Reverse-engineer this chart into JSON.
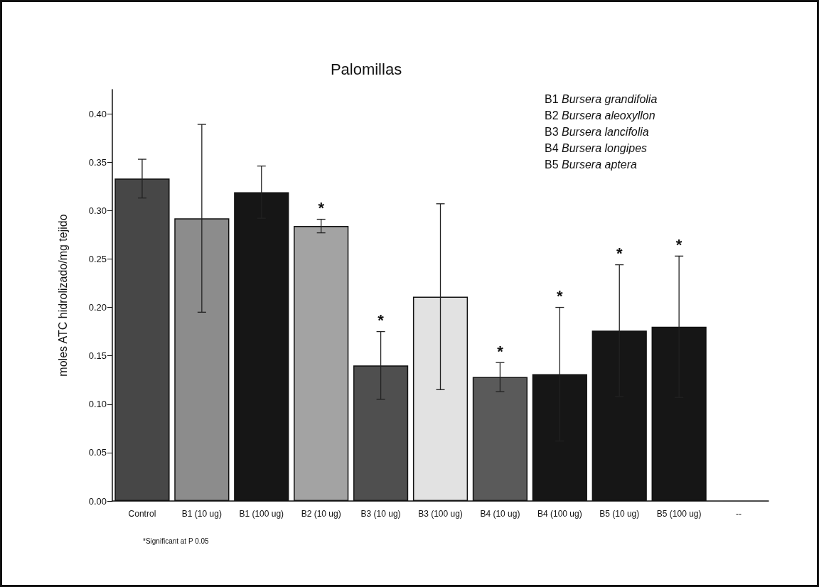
{
  "chart_data": {
    "type": "bar",
    "title": "Palomillas",
    "ylabel": "moles ATC hidrolizado/mg tejido",
    "categories": [
      "Control",
      "B1 (10 ug)",
      "B1 (100 ug)",
      "B2 (10 ug)",
      "B3 (10 ug)",
      "B3 (100 ug)",
      "B4 (10 ug)",
      "B4 (100 ug)",
      "B5 (10 ug)",
      "B5 (100 ug)",
      "--"
    ],
    "values": [
      0.333,
      0.292,
      0.319,
      0.284,
      0.14,
      0.211,
      0.128,
      0.131,
      0.176,
      0.18,
      null
    ],
    "errors": [
      0.02,
      0.097,
      0.027,
      0.007,
      0.035,
      0.096,
      0.015,
      0.069,
      0.068,
      0.073,
      null
    ],
    "colors": [
      "#474747",
      "#8c8c8c",
      "#161616",
      "#a3a3a3",
      "#4f4f4f",
      "#e2e2e2",
      "#5a5a5a",
      "#161616",
      "#161616",
      "#161616",
      "#161616"
    ],
    "ylim": [
      0,
      0.425
    ],
    "yticks": [
      {
        "value": 0,
        "label": "0.00"
      },
      {
        "value": 0.05,
        "label": "0.05"
      },
      {
        "value": 0.1,
        "label": "0.10"
      },
      {
        "value": 0.15,
        "label": "0.15"
      },
      {
        "value": 0.2,
        "label": "0.20"
      },
      {
        "value": 0.25,
        "label": "0.25"
      },
      {
        "value": 0.3,
        "label": "0.30"
      },
      {
        "value": 0.35,
        "label": "0.35"
      },
      {
        "value": 0.4,
        "label": "0.40"
      }
    ],
    "grid": false,
    "annotations": [
      {
        "text": "*",
        "x": "B2 (10 ug)",
        "y": 0.291
      },
      {
        "text": "*",
        "x": "B3 (10 ug)",
        "y": 0.175
      },
      {
        "text": "*",
        "x": "B4 (10 ug)",
        "y": 0.143
      },
      {
        "text": "*",
        "x": "B4 (100 ug)",
        "y": 0.2
      },
      {
        "text": "*",
        "x": "B5 (10 ug)",
        "y": 0.244
      },
      {
        "text": "*",
        "x": "B5 (100 ug)",
        "y": 0.253
      },
      "B1 Bursera grandifolia",
      "B2 Bursera aleoxyllon",
      "B3 Bursera lancifolia",
      "B4 Bursera longipes",
      "B5 Bursera aptera",
      "*Significant at P 0.05"
    ]
  }
}
